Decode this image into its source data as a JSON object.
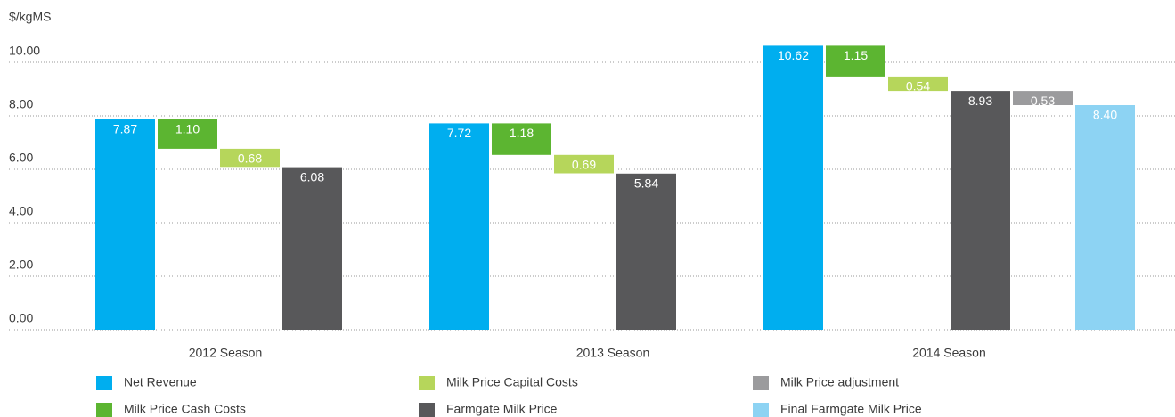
{
  "chart_data": {
    "type": "waterfall",
    "y_label": "$/kgMS",
    "categories": [
      "2012 Season",
      "2013 Season",
      "2014 Season"
    ],
    "series": [
      {
        "name": "Net Revenue",
        "color": "#00aeef",
        "measure": "absolute",
        "values": [
          7.87,
          7.72,
          10.62
        ],
        "value_labels": [
          "7.87",
          "7.72",
          "10.62"
        ]
      },
      {
        "name": "Milk Price Cash Costs",
        "color": "#5cb531",
        "measure": "relative",
        "values": [
          1.1,
          1.18,
          1.15
        ],
        "value_labels": [
          "1.10",
          "1.18",
          "1.15"
        ]
      },
      {
        "name": "Milk Price Capital Costs",
        "color": "#b6d65b",
        "measure": "relative",
        "values": [
          0.68,
          0.69,
          0.54
        ],
        "value_labels": [
          "0.68",
          "0.69",
          "0.54"
        ]
      },
      {
        "name": "Farmgate Milk Price",
        "color": "#58585a",
        "measure": "absolute",
        "values": [
          6.08,
          5.84,
          8.93
        ],
        "value_labels": [
          "6.08",
          "5.84",
          "8.93"
        ]
      },
      {
        "name": "Milk Price adjustment",
        "color": "#9b9b9d",
        "measure": "relative",
        "values": [
          null,
          null,
          0.53
        ],
        "value_labels": [
          null,
          null,
          "0.53"
        ]
      },
      {
        "name": "Final Farmgate Milk Price",
        "color": "#8dd3f3",
        "measure": "absolute",
        "values": [
          null,
          null,
          8.4
        ],
        "value_labels": [
          null,
          null,
          "8.40"
        ]
      }
    ],
    "ylim": [
      0,
      10
    ],
    "yticks": [
      {
        "value": 0,
        "label": "0.00"
      },
      {
        "value": 2,
        "label": "2.00"
      },
      {
        "value": 4,
        "label": "4.00"
      },
      {
        "value": 6,
        "label": "6.00"
      },
      {
        "value": 8,
        "label": "8.00"
      },
      {
        "value": 10,
        "label": "10.00"
      }
    ],
    "grid": true
  }
}
